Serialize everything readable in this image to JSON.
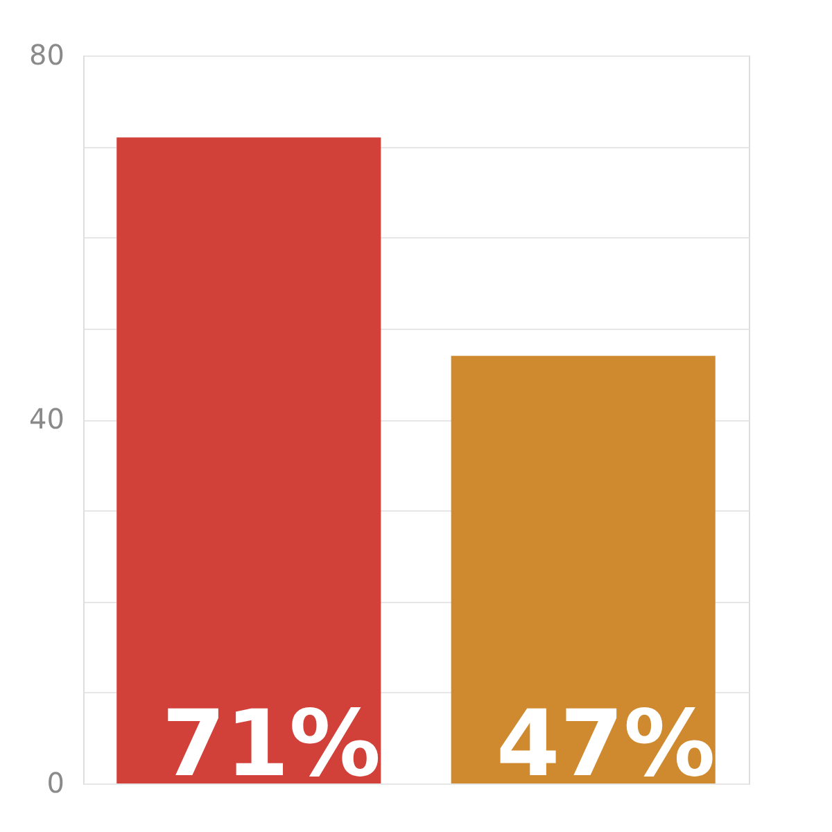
{
  "chart_data": {
    "type": "bar",
    "categories": [
      null,
      null
    ],
    "values": [
      71,
      47
    ],
    "colors": [
      "#d2403a",
      "#cf8a30"
    ],
    "value_labels": [
      "71%",
      "47%"
    ],
    "ylim": [
      0,
      80
    ],
    "yticks": [
      0,
      {
        "value": 10,
        "label": null
      },
      {
        "value": 20,
        "label": null
      },
      {
        "value": 30,
        "label": null
      },
      40,
      {
        "value": 50,
        "label": null
      },
      {
        "value": 60,
        "label": null
      },
      {
        "value": 70,
        "label": null
      },
      80
    ],
    "grid": "y",
    "tick_labels": "y"
  }
}
